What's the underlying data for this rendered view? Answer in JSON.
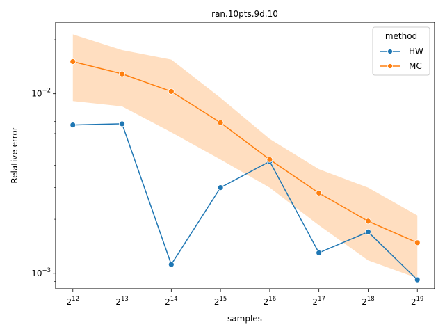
{
  "chart_data": {
    "type": "line",
    "title": "ran.10pts.9d.10",
    "xlabel": "samples",
    "ylabel": "Relative error",
    "y_scale": "log",
    "ylim": [
      0.00082,
      0.025
    ],
    "x": [
      12,
      13,
      14,
      15,
      16,
      17,
      18,
      19
    ],
    "x_tick_labels": [
      {
        "base": "2",
        "exp": "12"
      },
      {
        "base": "2",
        "exp": "13"
      },
      {
        "base": "2",
        "exp": "14"
      },
      {
        "base": "2",
        "exp": "15"
      },
      {
        "base": "2",
        "exp": "16"
      },
      {
        "base": "2",
        "exp": "17"
      },
      {
        "base": "2",
        "exp": "18"
      },
      {
        "base": "2",
        "exp": "19"
      }
    ],
    "y_major_ticks": [
      {
        "value": 0.001,
        "base": "10",
        "exp": "−3"
      },
      {
        "value": 0.01,
        "base": "10",
        "exp": "−2"
      }
    ],
    "legend": {
      "title": "method",
      "position": "top-right"
    },
    "series": [
      {
        "name": "HW",
        "color": "#1f77b4",
        "marker": "circle",
        "values": [
          0.0067,
          0.0068,
          0.00112,
          0.003,
          0.0042,
          0.0013,
          0.0017,
          0.00092
        ]
      },
      {
        "name": "MC",
        "color": "#ff7f0e",
        "marker": "circle",
        "values": [
          0.0151,
          0.0129,
          0.0103,
          0.0069,
          0.0043,
          0.0028,
          0.00195,
          0.00148
        ],
        "ci_lower": [
          0.0091,
          0.0085,
          0.0061,
          0.0043,
          0.003,
          0.00185,
          0.00118,
          0.00094
        ],
        "ci_upper": [
          0.0214,
          0.0175,
          0.0155,
          0.0095,
          0.0056,
          0.0038,
          0.003,
          0.0021
        ],
        "ci_color": "#ffdab9"
      }
    ]
  }
}
